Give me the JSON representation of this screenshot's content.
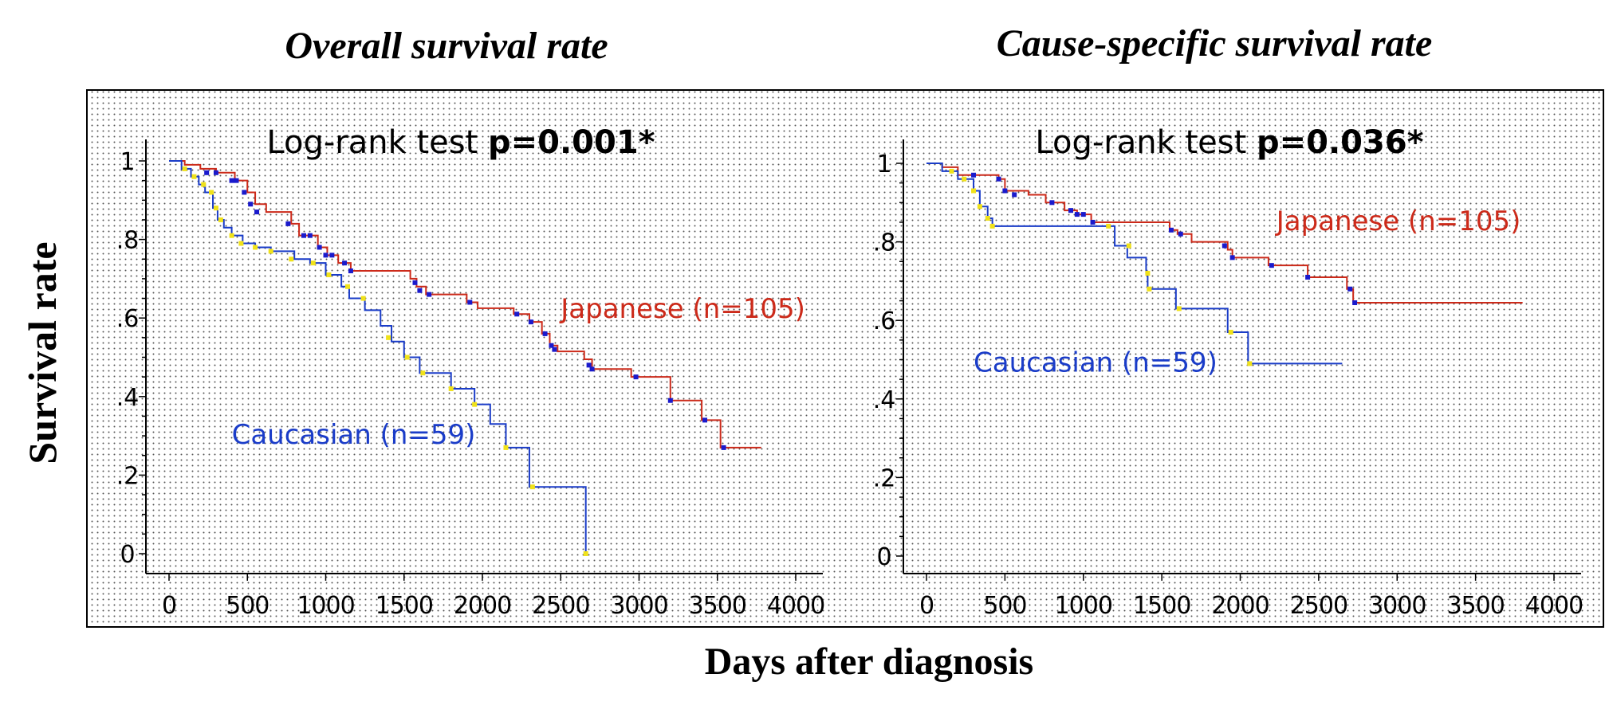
{
  "figure": {
    "ylabel": "Survival  rate",
    "xlabel": "Days after diagnosis",
    "colors": {
      "japanese": "#cc2a1a",
      "caucasian": "#1a3cc8",
      "censor_japanese": "#1a1acc",
      "censor_caucasian": "#f0e21a",
      "axis": "#000000",
      "background": "#ffffff",
      "dots": "#555555"
    }
  },
  "chart_data": [
    {
      "type": "line",
      "step": true,
      "title": "Overall survival rate",
      "test_label": "Log-rank test ",
      "test_value": "p=0.001*",
      "xlabel": "Days after diagnosis",
      "ylabel": "Survival  rate",
      "xlim": [
        -150,
        4150
      ],
      "ylim": [
        -0.05,
        1.05
      ],
      "xticks": [
        0,
        500,
        1000,
        1500,
        2000,
        2500,
        3000,
        3500,
        4000
      ],
      "xtick_labels": [
        "0",
        "500",
        "1000",
        "1500",
        "2000",
        "2500",
        "3000",
        "3500",
        "4000"
      ],
      "yticks": [
        0,
        0.2,
        0.4,
        0.6,
        0.8,
        1
      ],
      "ytick_labels": [
        "0",
        ".2",
        ".4",
        ".6",
        ".8",
        "1"
      ],
      "series": [
        {
          "name": "Japanese (n=105)",
          "color": "#cc2a1a",
          "censor_color": "#1a1acc",
          "label_pos": [
            2500,
            0.6
          ],
          "steps": [
            [
              0,
              1
            ],
            [
              100,
              0.99
            ],
            [
              200,
              0.98
            ],
            [
              300,
              0.97
            ],
            [
              420,
              0.95
            ],
            [
              500,
              0.92
            ],
            [
              550,
              0.89
            ],
            [
              620,
              0.87
            ],
            [
              780,
              0.84
            ],
            [
              830,
              0.81
            ],
            [
              950,
              0.78
            ],
            [
              1010,
              0.76
            ],
            [
              1080,
              0.74
            ],
            [
              1160,
              0.72
            ],
            [
              1540,
              0.7
            ],
            [
              1580,
              0.68
            ],
            [
              1640,
              0.66
            ],
            [
              1900,
              0.64
            ],
            [
              1970,
              0.625
            ],
            [
              2200,
              0.61
            ],
            [
              2300,
              0.59
            ],
            [
              2380,
              0.56
            ],
            [
              2430,
              0.53
            ],
            [
              2480,
              0.515
            ],
            [
              2650,
              0.495
            ],
            [
              2700,
              0.47
            ],
            [
              2950,
              0.45
            ],
            [
              3200,
              0.39
            ],
            [
              3400,
              0.34
            ],
            [
              3520,
              0.27
            ],
            [
              3780,
              0.27
            ]
          ],
          "censors": [
            [
              240,
              0.97
            ],
            [
              300,
              0.97
            ],
            [
              400,
              0.95
            ],
            [
              430,
              0.95
            ],
            [
              480,
              0.92
            ],
            [
              520,
              0.89
            ],
            [
              560,
              0.87
            ],
            [
              760,
              0.84
            ],
            [
              860,
              0.81
            ],
            [
              900,
              0.81
            ],
            [
              960,
              0.78
            ],
            [
              1000,
              0.76
            ],
            [
              1040,
              0.76
            ],
            [
              1120,
              0.74
            ],
            [
              1160,
              0.72
            ],
            [
              1570,
              0.69
            ],
            [
              1600,
              0.67
            ],
            [
              1660,
              0.66
            ],
            [
              1920,
              0.64
            ],
            [
              2220,
              0.61
            ],
            [
              2310,
              0.59
            ],
            [
              2400,
              0.56
            ],
            [
              2440,
              0.53
            ],
            [
              2460,
              0.52
            ],
            [
              2680,
              0.48
            ],
            [
              2700,
              0.47
            ],
            [
              2980,
              0.45
            ],
            [
              3200,
              0.39
            ],
            [
              3420,
              0.34
            ],
            [
              3540,
              0.27
            ]
          ]
        },
        {
          "name": "Caucasian (n=59)",
          "color": "#1a3cc8",
          "censor_color": "#f0e21a",
          "label_pos": [
            400,
            0.28
          ],
          "steps": [
            [
              0,
              1
            ],
            [
              80,
              0.98
            ],
            [
              140,
              0.96
            ],
            [
              190,
              0.94
            ],
            [
              230,
              0.92
            ],
            [
              280,
              0.88
            ],
            [
              310,
              0.85
            ],
            [
              350,
              0.83
            ],
            [
              400,
              0.81
            ],
            [
              470,
              0.79
            ],
            [
              550,
              0.78
            ],
            [
              650,
              0.77
            ],
            [
              800,
              0.75
            ],
            [
              900,
              0.74
            ],
            [
              1000,
              0.71
            ],
            [
              1100,
              0.68
            ],
            [
              1150,
              0.65
            ],
            [
              1250,
              0.62
            ],
            [
              1350,
              0.58
            ],
            [
              1420,
              0.54
            ],
            [
              1500,
              0.5
            ],
            [
              1600,
              0.46
            ],
            [
              1800,
              0.42
            ],
            [
              1950,
              0.38
            ],
            [
              2050,
              0.33
            ],
            [
              2150,
              0.27
            ],
            [
              2300,
              0.17
            ],
            [
              2660,
              0.17
            ],
            [
              2660,
              0
            ]
          ],
          "censors": [
            [
              100,
              0.98
            ],
            [
              160,
              0.96
            ],
            [
              220,
              0.94
            ],
            [
              270,
              0.92
            ],
            [
              300,
              0.88
            ],
            [
              330,
              0.85
            ],
            [
              400,
              0.81
            ],
            [
              460,
              0.79
            ],
            [
              550,
              0.78
            ],
            [
              650,
              0.77
            ],
            [
              780,
              0.75
            ],
            [
              920,
              0.74
            ],
            [
              1020,
              0.71
            ],
            [
              1140,
              0.68
            ],
            [
              1240,
              0.65
            ],
            [
              1400,
              0.55
            ],
            [
              1520,
              0.5
            ],
            [
              1620,
              0.46
            ],
            [
              1800,
              0.42
            ],
            [
              1950,
              0.38
            ],
            [
              2150,
              0.27
            ],
            [
              2320,
              0.17
            ],
            [
              2660,
              0
            ]
          ]
        }
      ]
    },
    {
      "type": "line",
      "step": true,
      "title": "Cause-specific survival rate",
      "test_label": "Log-rank test ",
      "test_value": "p=0.036*",
      "xlabel": "Days after diagnosis",
      "ylabel": "Survival  rate",
      "xlim": [
        -150,
        4150
      ],
      "ylim": [
        -0.05,
        1.05
      ],
      "xticks": [
        0,
        500,
        1000,
        1500,
        2000,
        2500,
        3000,
        3500,
        4000
      ],
      "xtick_labels": [
        "0",
        "500",
        "1000",
        "1500",
        "2000",
        "2500",
        "3000",
        "3500",
        "4000"
      ],
      "yticks": [
        0,
        0.2,
        0.4,
        0.6,
        0.8,
        1
      ],
      "ytick_labels": [
        "0",
        ".2",
        ".4",
        ".6",
        ".8",
        "1"
      ],
      "series": [
        {
          "name": "Japanese (n=105)",
          "color": "#cc2a1a",
          "censor_color": "#1a1acc",
          "label_pos": [
            2230,
            0.83
          ],
          "steps": [
            [
              0,
              1
            ],
            [
              100,
              0.99
            ],
            [
              200,
              0.97
            ],
            [
              460,
              0.96
            ],
            [
              500,
              0.93
            ],
            [
              650,
              0.92
            ],
            [
              760,
              0.9
            ],
            [
              880,
              0.88
            ],
            [
              960,
              0.87
            ],
            [
              1050,
              0.85
            ],
            [
              1550,
              0.83
            ],
            [
              1600,
              0.82
            ],
            [
              1690,
              0.8
            ],
            [
              1920,
              0.78
            ],
            [
              1950,
              0.76
            ],
            [
              2180,
              0.74
            ],
            [
              2430,
              0.71
            ],
            [
              2680,
              0.68
            ],
            [
              2720,
              0.645
            ],
            [
              3800,
              0.645
            ]
          ],
          "censors": [
            [
              300,
              0.97
            ],
            [
              460,
              0.96
            ],
            [
              500,
              0.93
            ],
            [
              560,
              0.92
            ],
            [
              800,
              0.9
            ],
            [
              920,
              0.88
            ],
            [
              960,
              0.87
            ],
            [
              1000,
              0.87
            ],
            [
              1060,
              0.85
            ],
            [
              1560,
              0.83
            ],
            [
              1620,
              0.82
            ],
            [
              1900,
              0.79
            ],
            [
              1950,
              0.76
            ],
            [
              2200,
              0.74
            ],
            [
              2430,
              0.71
            ],
            [
              2700,
              0.68
            ],
            [
              2730,
              0.645
            ]
          ]
        },
        {
          "name": "Caucasian (n=59)",
          "color": "#1a3cc8",
          "censor_color": "#f0e21a",
          "label_pos": [
            300,
            0.47
          ],
          "steps": [
            [
              0,
              1
            ],
            [
              100,
              0.98
            ],
            [
              200,
              0.96
            ],
            [
              300,
              0.93
            ],
            [
              340,
              0.89
            ],
            [
              390,
              0.86
            ],
            [
              420,
              0.84
            ],
            [
              1150,
              0.84
            ],
            [
              1200,
              0.79
            ],
            [
              1280,
              0.76
            ],
            [
              1400,
              0.72
            ],
            [
              1410,
              0.68
            ],
            [
              1590,
              0.63
            ],
            [
              1920,
              0.57
            ],
            [
              2050,
              0.49
            ],
            [
              2650,
              0.49
            ]
          ],
          "censors": [
            [
              160,
              0.98
            ],
            [
              240,
              0.96
            ],
            [
              300,
              0.93
            ],
            [
              340,
              0.89
            ],
            [
              390,
              0.86
            ],
            [
              420,
              0.84
            ],
            [
              1160,
              0.84
            ],
            [
              1290,
              0.79
            ],
            [
              1410,
              0.72
            ],
            [
              1420,
              0.68
            ],
            [
              1610,
              0.63
            ],
            [
              1940,
              0.57
            ],
            [
              2060,
              0.49
            ]
          ]
        }
      ]
    }
  ]
}
